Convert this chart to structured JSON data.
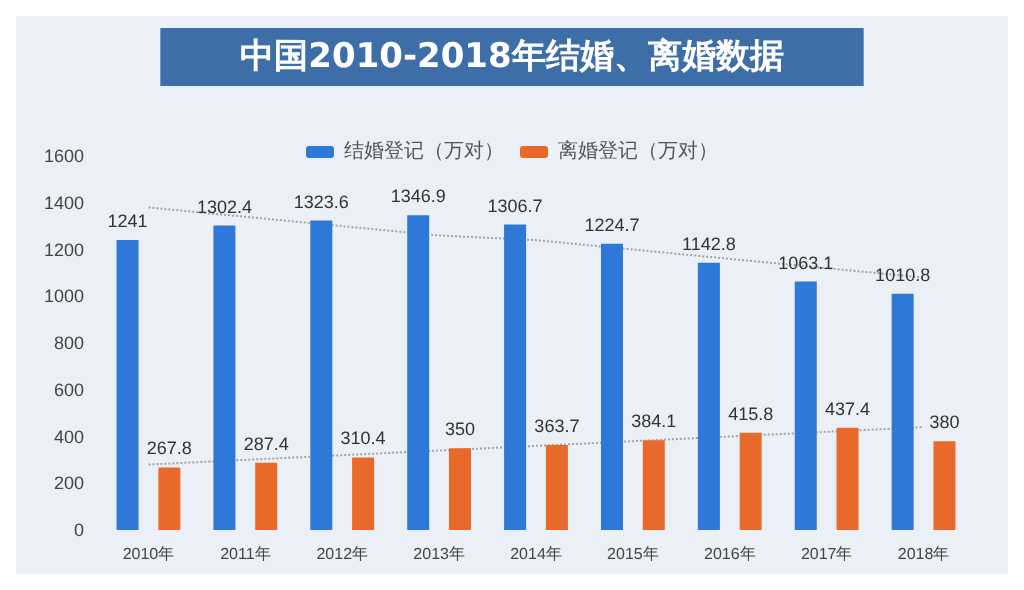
{
  "chart_data": {
    "type": "bar",
    "title": "中国2010-2018年结婚、离婚数据",
    "categories": [
      "2010年",
      "2011年",
      "2012年",
      "2013年",
      "2014年",
      "2015年",
      "2016年",
      "2017年",
      "2018年"
    ],
    "series": [
      {
        "name": "结婚登记（万对）",
        "color": "#2e78d8",
        "values": [
          1241,
          1302.4,
          1323.6,
          1346.9,
          1306.7,
          1224.7,
          1142.8,
          1063.1,
          1010.8
        ],
        "value_labels": [
          "1241",
          "1302.4",
          "1323.6",
          "1346.9",
          "1306.7",
          "1224.7",
          "1142.8",
          "1063.1",
          "1010.8"
        ]
      },
      {
        "name": "离婚登记（万对）",
        "color": "#e8692a",
        "values": [
          267.8,
          287.4,
          310.4,
          350,
          363.7,
          384.1,
          415.8,
          437.4,
          380
        ],
        "value_labels": [
          "267.8",
          "287.4",
          "310.4",
          "350",
          "363.7",
          "384.1",
          "415.8",
          "437.4",
          "380"
        ]
      },
      {
        "type": "line",
        "color": "#a0a4aa",
        "line_style": "dotted",
        "marker": "none",
        "values": [
          1380,
          1340,
          1300,
          1260,
          1240,
          1200,
          1160,
          1120,
          1080
        ]
      },
      {
        "type": "line",
        "color": "#a0a4aa",
        "line_style": "dotted",
        "marker": "none",
        "values": [
          280,
          300,
          320,
          340,
          360,
          380,
          400,
          420,
          440
        ]
      }
    ],
    "ylim": [
      0,
      1600
    ],
    "yticks": [
      0,
      200,
      400,
      600,
      800,
      1000,
      1200,
      1400,
      1600
    ],
    "grid": false,
    "legend": "top"
  }
}
